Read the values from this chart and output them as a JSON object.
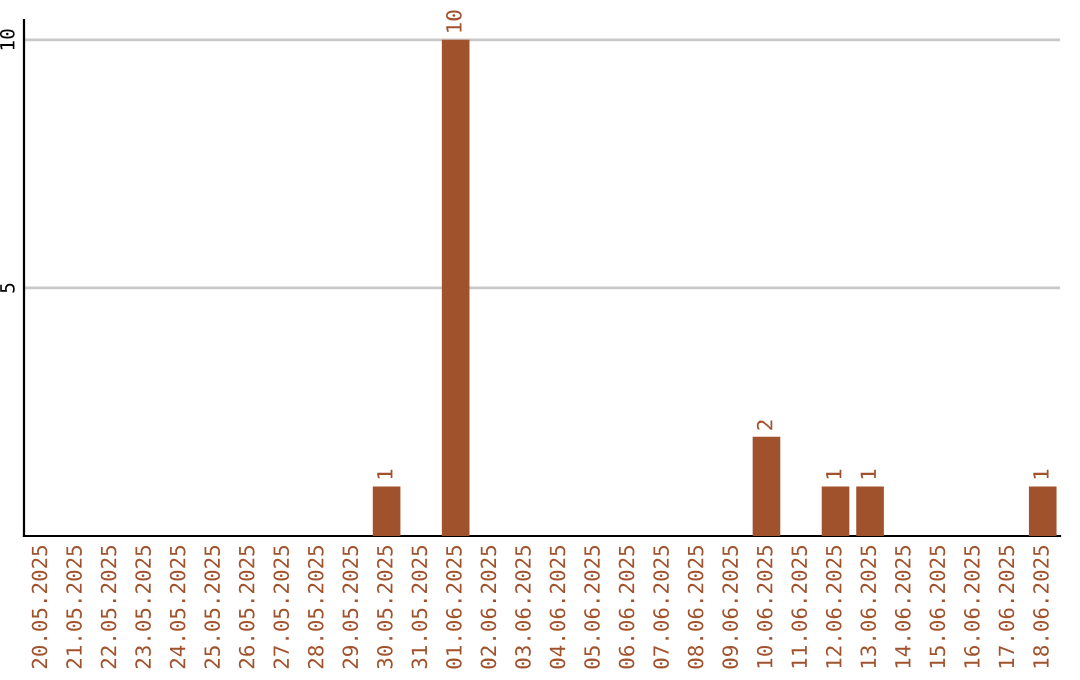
{
  "chart_data": {
    "type": "bar",
    "categories": [
      "20.05.2025",
      "21.05.2025",
      "22.05.2025",
      "23.05.2025",
      "24.05.2025",
      "25.05.2025",
      "26.05.2025",
      "27.05.2025",
      "28.05.2025",
      "29.05.2025",
      "30.05.2025",
      "31.05.2025",
      "01.06.2025",
      "02.06.2025",
      "03.06.2025",
      "04.06.2025",
      "05.06.2025",
      "06.06.2025",
      "07.06.2025",
      "08.06.2025",
      "09.06.2025",
      "10.06.2025",
      "11.06.2025",
      "12.06.2025",
      "13.06.2025",
      "14.06.2025",
      "15.06.2025",
      "16.06.2025",
      "17.06.2025",
      "18.06.2025"
    ],
    "values": [
      0,
      0,
      0,
      0,
      0,
      0,
      0,
      0,
      0,
      0,
      1,
      0,
      10,
      0,
      0,
      0,
      0,
      0,
      0,
      0,
      0,
      2,
      0,
      1,
      1,
      0,
      0,
      0,
      0,
      1
    ],
    "value_labels": [
      null,
      null,
      null,
      null,
      null,
      null,
      null,
      null,
      null,
      null,
      "1",
      null,
      "10",
      null,
      null,
      null,
      null,
      null,
      null,
      null,
      null,
      "2",
      null,
      "1",
      "1",
      null,
      null,
      null,
      null,
      "1"
    ],
    "color": "#a0522d",
    "ylim": [
      0,
      10.4
    ],
    "yticks": [
      5,
      10
    ],
    "grid": "y"
  }
}
